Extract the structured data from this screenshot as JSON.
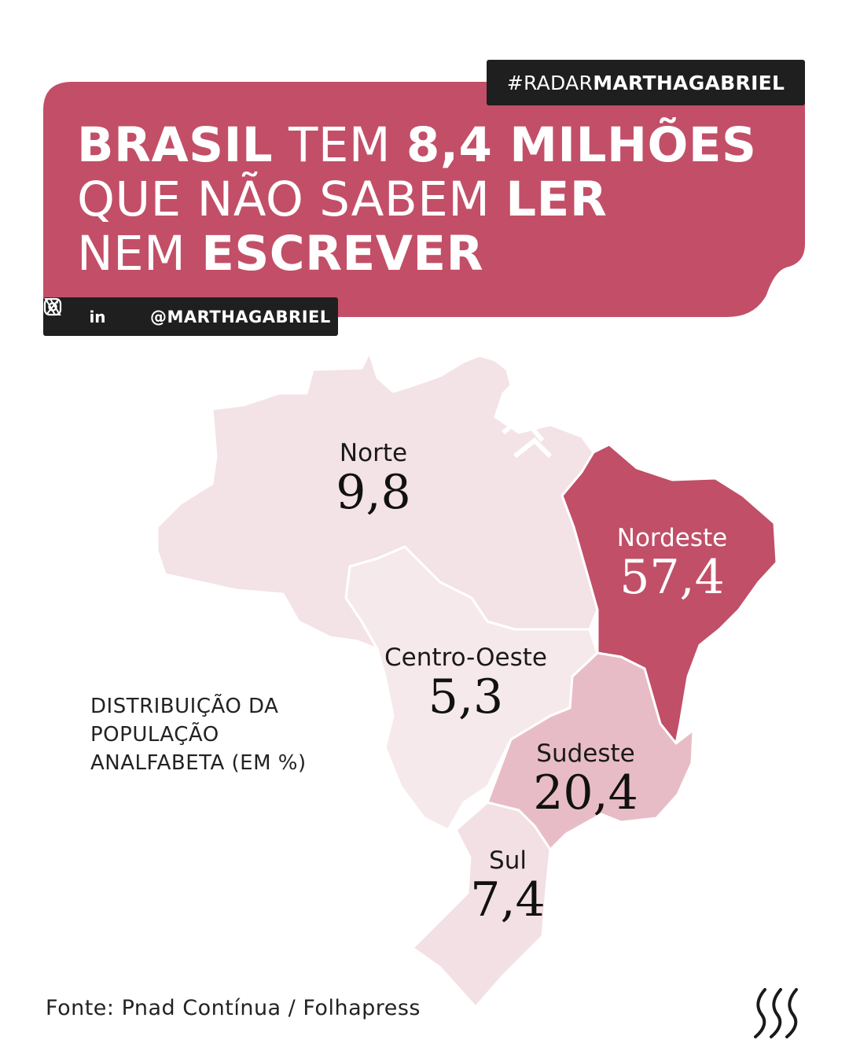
{
  "brand": {
    "tag_prefix": "#RADAR",
    "tag_bold": "MARTHAGABRIEL",
    "handle": "@MARTHAGABRIEL",
    "social_icons": [
      "x-icon",
      "linkedin-icon",
      "instagram-icon"
    ],
    "linkedin_glyph": "in"
  },
  "headline": {
    "line1_bold1": "BRASIL",
    "line1_normal": " TEM ",
    "line1_bold2": "8,4 MILHÕES",
    "line2_normal": "QUE NÃO SABEM ",
    "line2_bold": "LER",
    "line3_normal": "NEM ",
    "line3_bold": "ESCREVER"
  },
  "map": {
    "title_lines": [
      "DISTRIBUIÇÃO DA",
      "POPULAÇÃO",
      "ANALFABETA (EM %)"
    ],
    "unit": "%",
    "regions": [
      {
        "id": "norte",
        "name": "Norte",
        "value": 9.8,
        "label": "9,8",
        "color": "#f3e2e6"
      },
      {
        "id": "nordeste",
        "name": "Nordeste",
        "value": 57.4,
        "label": "57,4",
        "color": "#c04f67"
      },
      {
        "id": "centro-oeste",
        "name": "Centro-Oeste",
        "value": 5.3,
        "label": "5,3",
        "color": "#f6e9ec"
      },
      {
        "id": "sudeste",
        "name": "Sudeste",
        "value": 20.4,
        "label": "20,4",
        "color": "#e8bcc6"
      },
      {
        "id": "sul",
        "name": "Sul",
        "value": 7.4,
        "label": "7,4",
        "color": "#f2e0e4"
      }
    ]
  },
  "colors": {
    "accent": "#c24f67",
    "dark": "#1f1f1f",
    "text": "#222222"
  },
  "source": "Fonte: Pnad Contínua / Folhapress"
}
